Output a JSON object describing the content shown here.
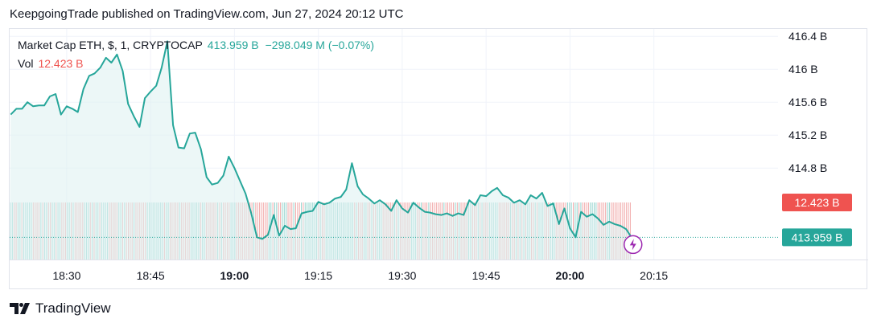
{
  "header": {
    "published": "KeepgoingTrade published on TradingView.com, Jun 27, 2024 20:12 UTC"
  },
  "legend": {
    "symbol": "Market Cap ETH, $, 1, CRYPTOCAP",
    "last": "413.959 B",
    "change": "−298.049 M (−0.07%)",
    "vol_label": "Vol",
    "vol_value": "12.423 B"
  },
  "footer": {
    "brand": "TradingView",
    "logo": "tradingview-logo-icon"
  },
  "colors": {
    "line": "#26a69a",
    "area": "#e0f2f1",
    "vol_up": "#80cbc4",
    "vol_down": "#ef9a9a",
    "price_tag": "#26a69a",
    "vol_tag": "#ef5350",
    "grid": "#f0f3fa",
    "accent_icon": "#9c27b0"
  },
  "chart_data": {
    "type": "area",
    "title": "Market Cap ETH, $, 1, CRYPTOCAP",
    "xlabel": "",
    "ylabel": "",
    "ylim": [
      413.69,
      416.49
    ],
    "x_ticks": [
      {
        "t": 18.5,
        "label": "18:30",
        "bold": false
      },
      {
        "t": 18.75,
        "label": "18:45",
        "bold": false
      },
      {
        "t": 19.0,
        "label": "19:00",
        "bold": true
      },
      {
        "t": 19.25,
        "label": "19:15",
        "bold": false
      },
      {
        "t": 19.5,
        "label": "19:30",
        "bold": false
      },
      {
        "t": 19.75,
        "label": "19:45",
        "bold": false
      },
      {
        "t": 20.0,
        "label": "20:00",
        "bold": true
      },
      {
        "t": 20.25,
        "label": "20:15",
        "bold": false
      }
    ],
    "y_ticks": [
      {
        "v": 416.4,
        "label": "416.4 B"
      },
      {
        "v": 416.0,
        "label": "416 B"
      },
      {
        "v": 415.6,
        "label": "415.6 B"
      },
      {
        "v": 415.2,
        "label": "415.2 B"
      },
      {
        "v": 414.8,
        "label": "414.8 B"
      }
    ],
    "x_range": [
      18.33,
      20.62
    ],
    "last_value": 413.959,
    "last_label": "413.959 B",
    "volume_label": "12.423 B",
    "series": [
      {
        "name": "Market Cap ETH",
        "x": [
          18.333,
          18.35,
          18.367,
          18.383,
          18.4,
          18.417,
          18.433,
          18.45,
          18.467,
          18.483,
          18.5,
          18.517,
          18.533,
          18.55,
          18.567,
          18.583,
          18.6,
          18.617,
          18.633,
          18.65,
          18.667,
          18.683,
          18.7,
          18.717,
          18.733,
          18.75,
          18.767,
          18.783,
          18.8,
          18.817,
          18.833,
          18.85,
          18.867,
          18.883,
          18.9,
          18.917,
          18.933,
          18.95,
          18.967,
          18.983,
          19.0,
          19.017,
          19.033,
          19.05,
          19.067,
          19.083,
          19.1,
          19.117,
          19.133,
          19.15,
          19.167,
          19.183,
          19.2,
          19.217,
          19.233,
          19.25,
          19.267,
          19.283,
          19.3,
          19.317,
          19.333,
          19.35,
          19.367,
          19.383,
          19.4,
          19.417,
          19.433,
          19.45,
          19.467,
          19.483,
          19.5,
          19.517,
          19.533,
          19.55,
          19.567,
          19.583,
          19.6,
          19.617,
          19.633,
          19.65,
          19.667,
          19.683,
          19.7,
          19.717,
          19.733,
          19.75,
          19.767,
          19.783,
          19.8,
          19.817,
          19.833,
          19.85,
          19.867,
          19.883,
          19.9,
          19.917,
          19.933,
          19.95,
          19.967,
          19.983,
          20.0,
          20.017,
          20.033,
          20.05,
          20.067,
          20.083,
          20.1,
          20.117,
          20.133,
          20.15,
          20.167,
          20.183
        ],
        "values": [
          415.45,
          415.52,
          415.52,
          415.6,
          415.55,
          415.56,
          415.56,
          415.67,
          415.7,
          415.45,
          415.55,
          415.52,
          415.48,
          415.76,
          415.92,
          415.95,
          416.02,
          416.14,
          416.08,
          416.18,
          415.98,
          415.58,
          415.43,
          415.3,
          415.65,
          415.73,
          415.8,
          416.02,
          416.34,
          415.32,
          415.05,
          415.04,
          415.22,
          415.23,
          415.03,
          414.69,
          414.6,
          414.62,
          414.71,
          414.94,
          414.8,
          414.64,
          414.49,
          414.25,
          413.96,
          413.94,
          413.99,
          414.23,
          413.98,
          414.1,
          414.06,
          414.07,
          414.25,
          414.27,
          414.28,
          414.39,
          414.36,
          414.38,
          414.43,
          414.45,
          414.54,
          414.86,
          414.58,
          414.48,
          414.43,
          414.37,
          414.41,
          414.36,
          414.28,
          414.41,
          414.31,
          414.26,
          414.38,
          414.32,
          414.27,
          414.26,
          414.24,
          414.23,
          414.25,
          414.22,
          414.25,
          414.23,
          414.41,
          414.35,
          414.47,
          414.46,
          414.52,
          414.56,
          414.47,
          414.44,
          414.38,
          414.41,
          414.36,
          414.47,
          414.43,
          414.5,
          414.34,
          414.37,
          414.12,
          414.31,
          414.07,
          413.96,
          414.27,
          414.21,
          414.24,
          414.19,
          414.11,
          414.15,
          414.12,
          414.1,
          414.06,
          413.96
        ]
      }
    ]
  }
}
